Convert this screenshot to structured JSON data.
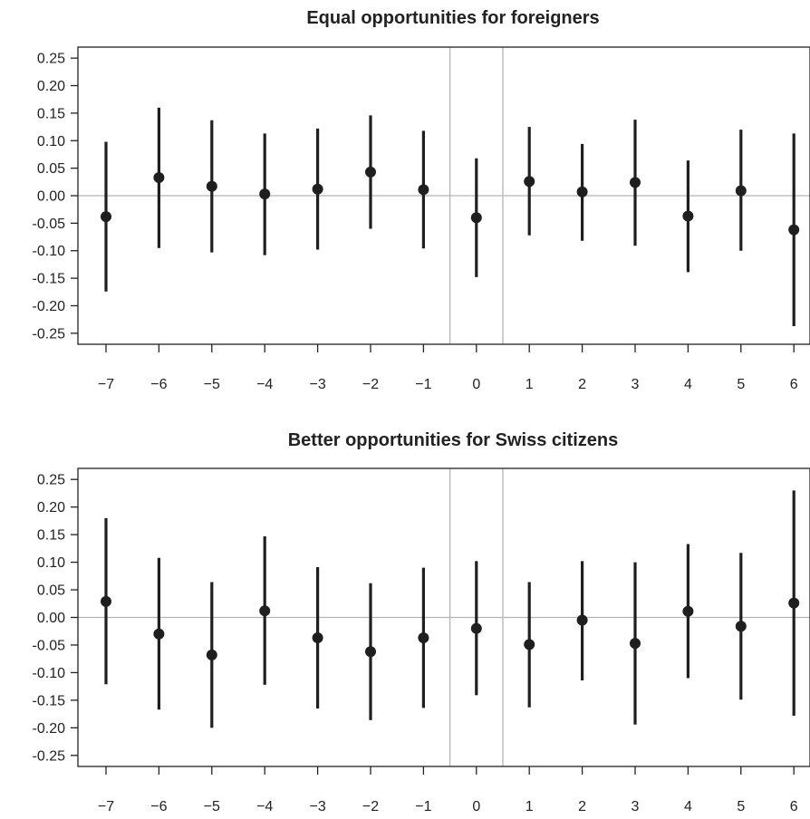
{
  "chart_data": [
    {
      "type": "scatter",
      "subtype": "point-estimate-with-confidence-intervals",
      "title": "Equal opportunities for foreigners",
      "xlabel": "",
      "ylabel": "",
      "x": [
        -7,
        -6,
        -5,
        -4,
        -3,
        -2,
        -1,
        0,
        1,
        2,
        3,
        4,
        5,
        6
      ],
      "xlim": [
        -7,
        6.3
      ],
      "ylim": [
        -0.27,
        0.27
      ],
      "yticks": [
        -0.25,
        -0.2,
        -0.15,
        -0.1,
        -0.05,
        0.0,
        0.05,
        0.1,
        0.15,
        0.2,
        0.25
      ],
      "ytick_labels": [
        "-0.25",
        "-0.20",
        "-0.15",
        "-0.10",
        "-0.05",
        "0.00",
        "0.05",
        "0.10",
        "0.15",
        "0.20",
        "0.25"
      ],
      "xtick_labels": [
        "−7",
        "−6",
        "−5",
        "−4",
        "−3",
        "−2",
        "−1",
        "0",
        "1",
        "2",
        "3",
        "4",
        "5",
        "6"
      ],
      "estimates": [
        -0.038,
        0.033,
        0.017,
        0.003,
        0.012,
        0.043,
        0.011,
        -0.04,
        0.026,
        0.007,
        0.024,
        -0.037,
        0.009,
        -0.062
      ],
      "ci_lower": [
        -0.174,
        -0.095,
        -0.103,
        -0.108,
        -0.098,
        -0.06,
        -0.096,
        -0.148,
        -0.072,
        -0.082,
        -0.091,
        -0.139,
        -0.1,
        -0.237
      ],
      "ci_upper": [
        0.098,
        0.16,
        0.137,
        0.113,
        0.122,
        0.146,
        0.118,
        0.068,
        0.125,
        0.094,
        0.138,
        0.064,
        0.12,
        0.113
      ],
      "reference_lines": {
        "horizontal": [
          0
        ],
        "vertical": [
          -0.5,
          0.5
        ]
      },
      "grid": false,
      "colors": {
        "marker": "#1f1f1f",
        "reference": "#b4b4b4",
        "axis": "#222222"
      }
    },
    {
      "type": "scatter",
      "subtype": "point-estimate-with-confidence-intervals",
      "title": "Better opportunities for Swiss citizens",
      "xlabel": "",
      "ylabel": "",
      "x": [
        -7,
        -6,
        -5,
        -4,
        -3,
        -2,
        -1,
        0,
        1,
        2,
        3,
        4,
        5,
        6
      ],
      "xlim": [
        -7,
        6.3
      ],
      "ylim": [
        -0.27,
        0.27
      ],
      "yticks": [
        -0.25,
        -0.2,
        -0.15,
        -0.1,
        -0.05,
        0.0,
        0.05,
        0.1,
        0.15,
        0.2,
        0.25
      ],
      "ytick_labels": [
        "-0.25",
        "-0.20",
        "-0.15",
        "-0.10",
        "-0.05",
        "0.00",
        "0.05",
        "0.10",
        "0.15",
        "0.20",
        "0.25"
      ],
      "xtick_labels": [
        "−7",
        "−6",
        "−5",
        "−4",
        "−3",
        "−2",
        "−1",
        "0",
        "1",
        "2",
        "3",
        "4",
        "5",
        "6"
      ],
      "estimates": [
        0.029,
        -0.03,
        -0.068,
        0.012,
        -0.037,
        -0.062,
        -0.037,
        -0.02,
        -0.049,
        -0.005,
        -0.047,
        0.011,
        -0.016,
        0.026
      ],
      "ci_lower": [
        -0.121,
        -0.167,
        -0.2,
        -0.122,
        -0.165,
        -0.186,
        -0.164,
        -0.141,
        -0.163,
        -0.114,
        -0.194,
        -0.11,
        -0.149,
        -0.178
      ],
      "ci_upper": [
        0.18,
        0.108,
        0.064,
        0.147,
        0.091,
        0.062,
        0.09,
        0.102,
        0.064,
        0.102,
        0.1,
        0.133,
        0.117,
        0.23
      ],
      "reference_lines": {
        "horizontal": [
          0
        ],
        "vertical": [
          -0.5,
          0.5
        ]
      },
      "grid": false,
      "colors": {
        "marker": "#1f1f1f",
        "reference": "#b4b4b4",
        "axis": "#222222"
      }
    }
  ]
}
